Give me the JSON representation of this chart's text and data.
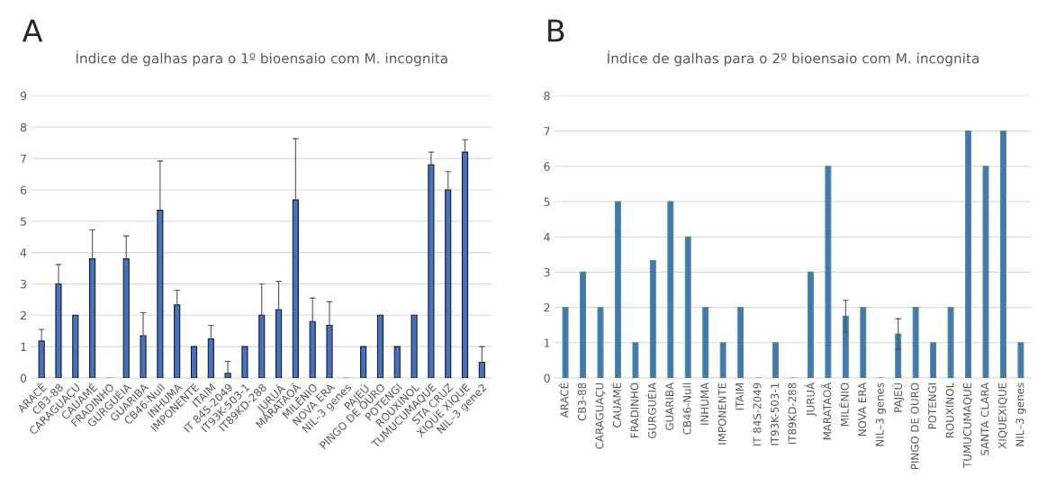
{
  "chart_data": [
    {
      "type": "bar",
      "title": "Índice de galhas para o 1º bioensaio com M. incognita",
      "annotations": [
        "A"
      ],
      "categories": [
        "ARACÊ",
        "CB3-88",
        "CARAGUAÇU",
        "CAUAMÉ",
        "FRADINHO",
        "GURGUÉIA",
        "GUARIBA",
        "CB46-Null",
        "INHUMA",
        "IMPONENTE",
        "ITAIM",
        "IT 84S-2049",
        "IT93K-503-1",
        "IT89KD-288",
        "JURUÁ",
        "MARATAOÃ",
        "MILÊNIO",
        "NOVA ERA",
        "NIL–3 genes",
        "PAJEÚ",
        "PINGO DE OURO",
        "POTENGI",
        "ROUXINOL",
        "TUMUCUMAQUE",
        "STA CRUZ",
        "XIQUE XIQUE",
        "NIL–3 gene2"
      ],
      "series": [
        {
          "color": "#4472c4",
          "values": [
            1.18,
            3.0,
            2,
            3.8,
            0,
            3.8,
            1.35,
            5.35,
            2.33,
            1,
            1.25,
            0.15,
            1,
            2,
            2.18,
            5.68,
            1.8,
            1.68,
            0,
            1,
            2,
            1,
            2,
            6.8,
            6.0,
            7.2,
            0.5
          ],
          "errors": [
            [
              1.18,
              1.55
            ],
            [
              3.0,
              3.62
            ],
            null,
            [
              3.8,
              4.72
            ],
            null,
            [
              3.8,
              4.53
            ],
            [
              1.35,
              2.08
            ],
            [
              5.35,
              6.92
            ],
            [
              2.33,
              2.8
            ],
            null,
            [
              1.25,
              1.68
            ],
            [
              0.15,
              0.53
            ],
            null,
            [
              2,
              3.0
            ],
            [
              2.18,
              3.08
            ],
            [
              5.68,
              7.63
            ],
            [
              1.8,
              2.55
            ],
            [
              1.68,
              2.43
            ],
            null,
            null,
            null,
            null,
            null,
            [
              6.8,
              7.2
            ],
            [
              6.0,
              6.58
            ],
            [
              7.2,
              7.6
            ],
            [
              0.5,
              1.0
            ]
          ]
        }
      ],
      "ylim": [
        0,
        9
      ],
      "yticks": [
        0,
        1,
        2,
        3,
        4,
        5,
        6,
        7,
        8,
        9
      ],
      "grid": "y",
      "legend": false
    },
    {
      "type": "bar",
      "title": "Índice de galhas para o 2º bioensaio com M. incognita",
      "annotations": [
        "B"
      ],
      "categories": [
        "ARACÊ",
        "CB3-88",
        "CARAGUAÇU",
        "CAUAMÉ",
        "FRADINHO",
        "GURGUÉIA",
        "GUARIBA",
        "CB46-Null",
        "INHUMA",
        "IMPONENTE",
        "ITAIM",
        "IT 84S-2049",
        "IT93K-503-1",
        "IT89KD-288",
        "JURUÁ",
        "MARATAOÃ",
        "MILÊNIO",
        "NOVA ERA",
        "NIL–3 genes",
        "PAJEÚ",
        "PINGO DE OURO",
        "POTENGI",
        "ROUXINOL",
        "TUMUCUMAQUE",
        "SANTA CLARA",
        "XIQUEXIQUE",
        "NIL–3 genes"
      ],
      "series": [
        {
          "color": "#4472c4",
          "values": [
            2,
            3,
            2,
            5,
            1,
            3.33,
            5,
            4,
            2,
            1,
            2,
            0,
            1,
            0,
            3,
            6,
            1.75,
            2,
            0,
            1.25,
            2,
            1,
            2,
            7,
            6,
            7,
            1
          ],
          "errors": [
            null,
            null,
            null,
            null,
            null,
            null,
            null,
            null,
            null,
            null,
            null,
            null,
            null,
            null,
            null,
            null,
            0.45,
            null,
            null,
            0.43,
            null,
            null,
            null,
            null,
            null,
            null,
            null
          ]
        }
      ],
      "ylim": [
        0,
        8
      ],
      "yticks": [
        0,
        1,
        2,
        3,
        4,
        5,
        6,
        7,
        8
      ],
      "grid": "y",
      "legend": false
    }
  ]
}
